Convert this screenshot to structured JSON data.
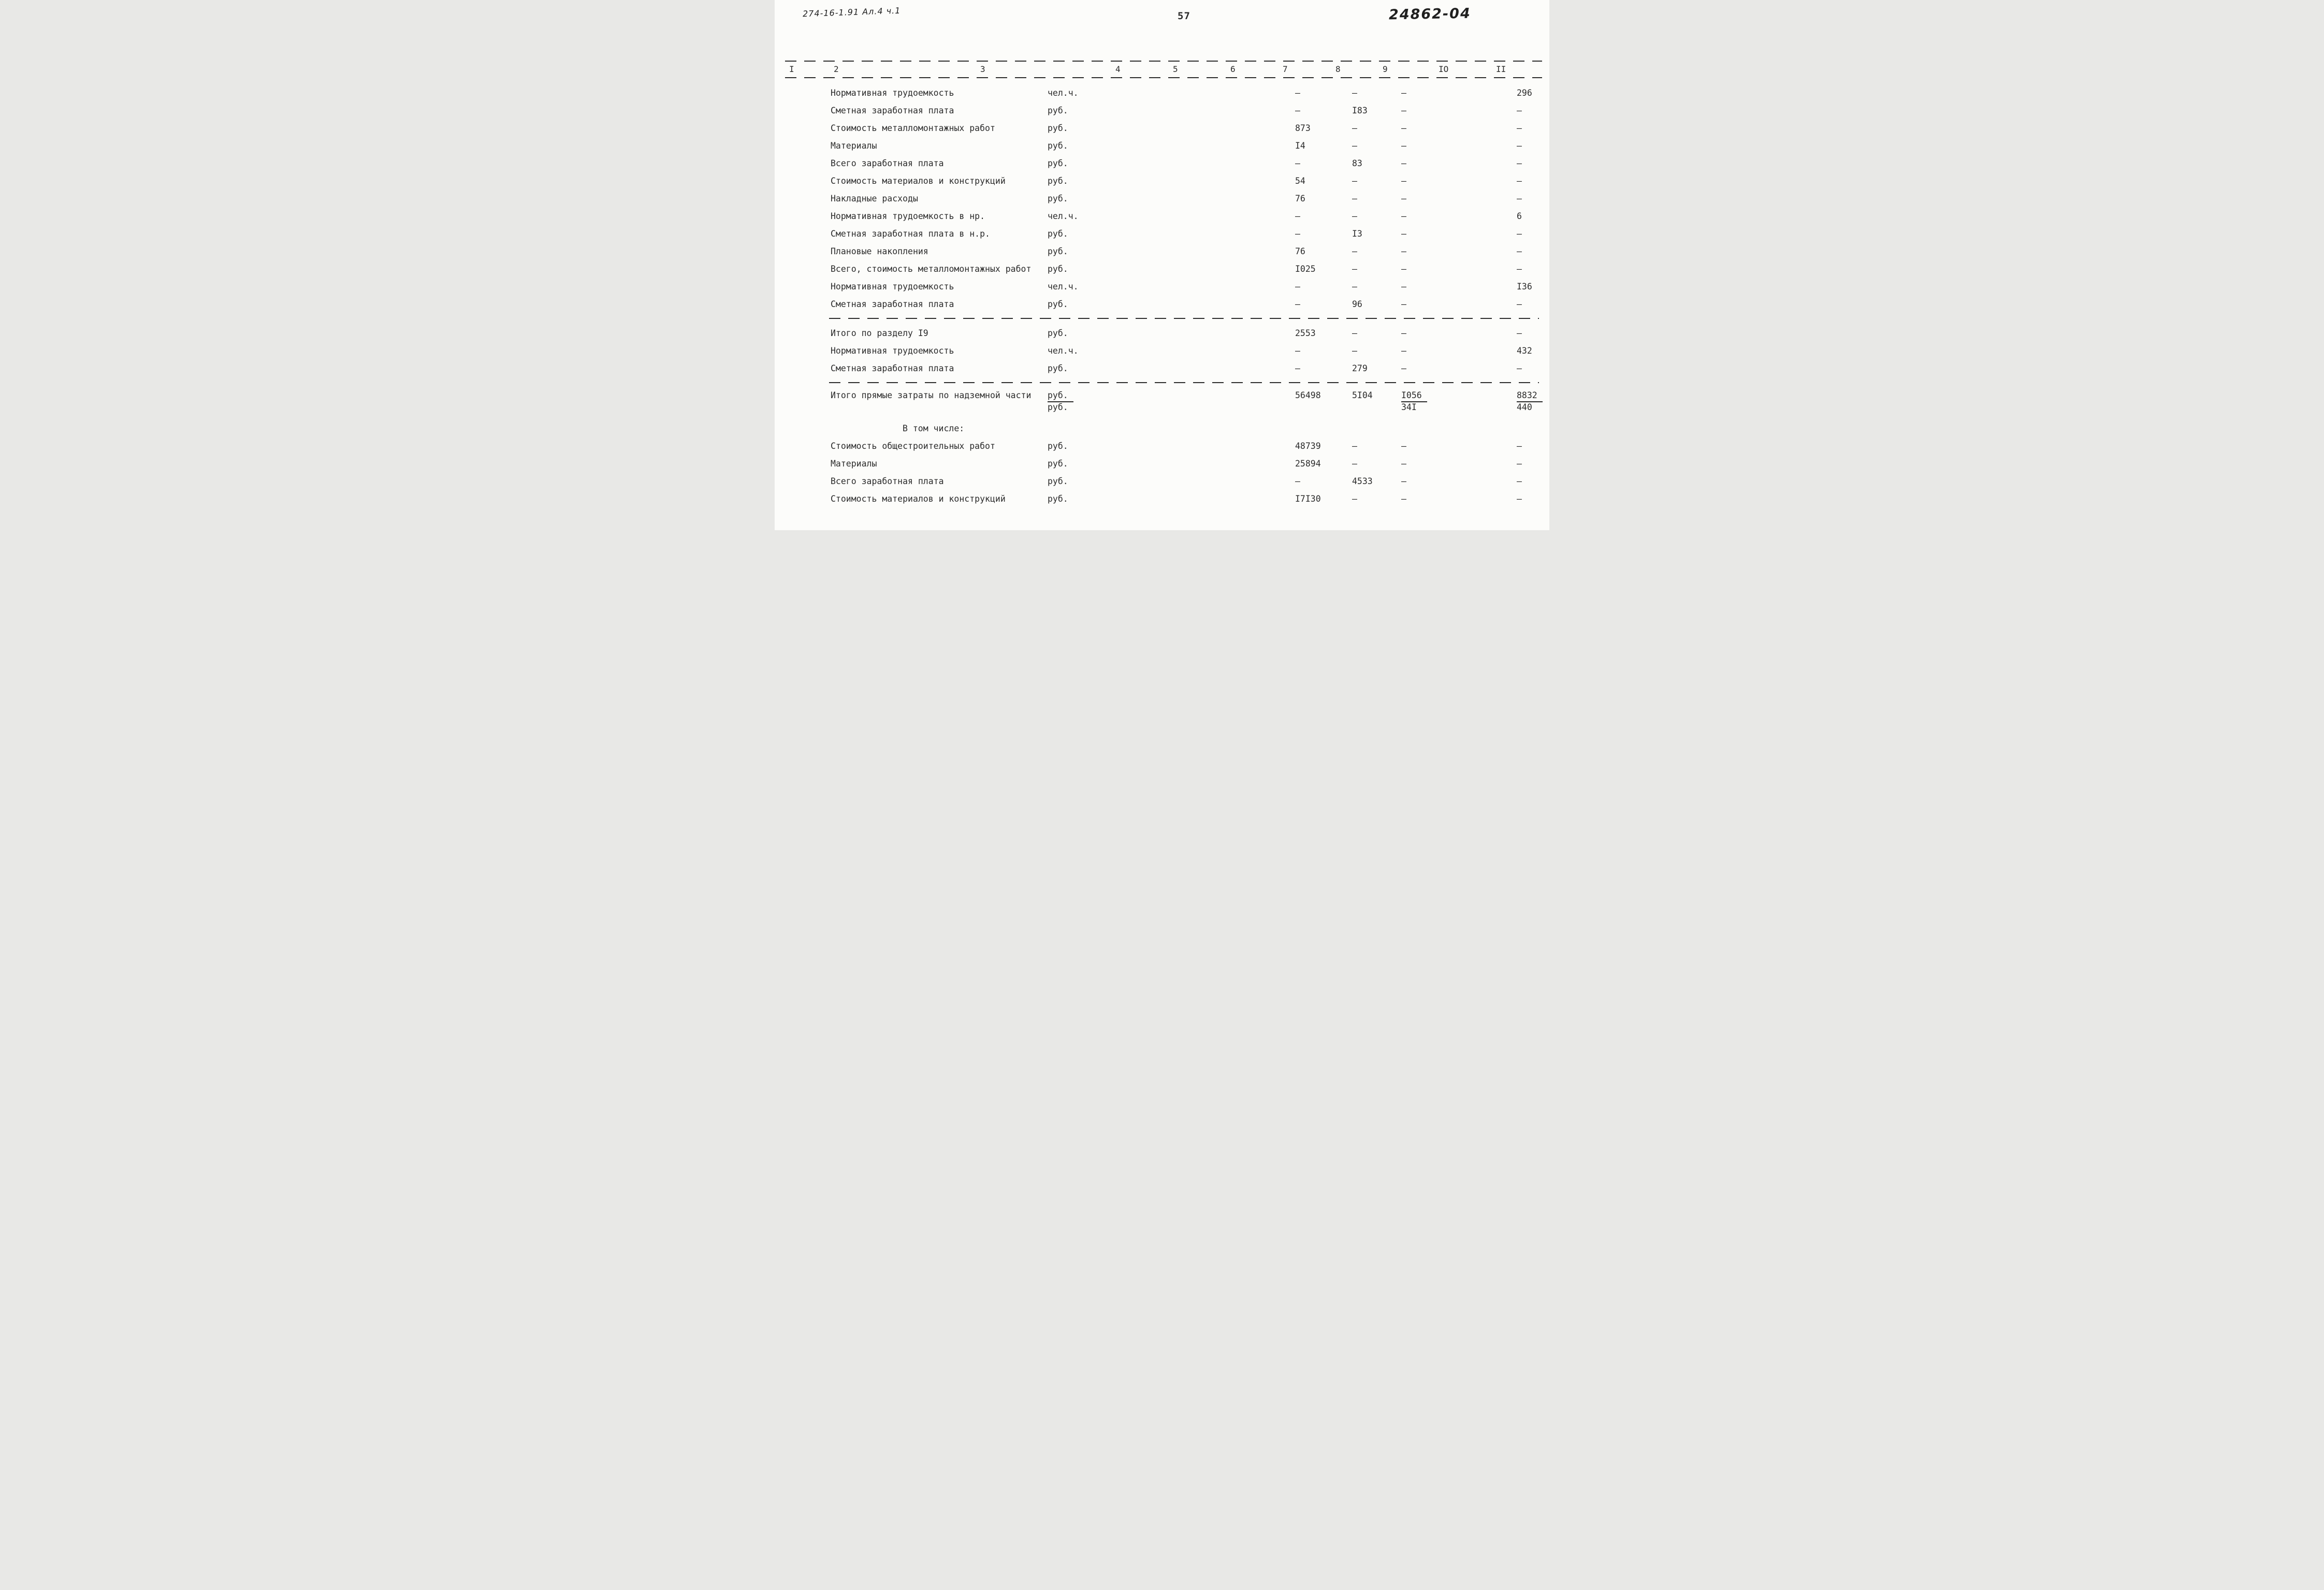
{
  "page": {
    "annotation_left": "274-16-1.91 Ал.4 ч.1",
    "page_number": "57",
    "annotation_right": "24862-04"
  },
  "table": {
    "header_columns": [
      "I",
      "2",
      "3",
      "4",
      "5",
      "6",
      "7",
      "8",
      "9",
      "IO",
      "II"
    ],
    "rows": [
      {
        "type": "row",
        "label": "Нормативная трудоемкость",
        "unit": "чел.ч.",
        "c7": "–",
        "c8": "–",
        "c9": "–",
        "c11": "296"
      },
      {
        "type": "row",
        "label": "Сметная заработная плата",
        "unit": "руб.",
        "c7": "–",
        "c8": "I83",
        "c9": "–",
        "c11": "–"
      },
      {
        "type": "row",
        "label": "Стоимость металломонтажных работ",
        "unit": "руб.",
        "c7": "873",
        "c8": "–",
        "c9": "–",
        "c11": "–"
      },
      {
        "type": "row",
        "label": "Материалы",
        "unit": "руб.",
        "c7": "I4",
        "c8": "–",
        "c9": "–",
        "c11": "–"
      },
      {
        "type": "row",
        "label": "Всего заработная плата",
        "unit": "руб.",
        "c7": "–",
        "c8": "83",
        "c9": "–",
        "c11": "–"
      },
      {
        "type": "row",
        "label": "Стоимость материалов и конструкций",
        "unit": "руб.",
        "c7": "54",
        "c8": "–",
        "c9": "–",
        "c11": "–"
      },
      {
        "type": "row",
        "label": "Накладные расходы",
        "unit": "руб.",
        "c7": "76",
        "c8": "–",
        "c9": "–",
        "c11": "–"
      },
      {
        "type": "row",
        "label": "Нормативная трудоемкость в нр.",
        "unit": "чел.ч.",
        "c7": "–",
        "c8": "–",
        "c9": "–",
        "c11": "6"
      },
      {
        "type": "row",
        "label": "Сметная заработная плата в н.р.",
        "unit": "руб.",
        "c7": "–",
        "c8": "I3",
        "c9": "–",
        "c11": "–"
      },
      {
        "type": "row",
        "label": "Плановые накопления",
        "unit": "руб.",
        "c7": "76",
        "c8": "–",
        "c9": "–",
        "c11": "–"
      },
      {
        "type": "row",
        "label": "Всего, стоимость металломонтажных работ",
        "unit": "руб.",
        "c7": "I025",
        "c8": "–",
        "c9": "–",
        "c11": "–"
      },
      {
        "type": "row",
        "label": "Нормативная трудоемкость",
        "unit": "чел.ч.",
        "c7": "–",
        "c8": "–",
        "c9": "–",
        "c11": "I36"
      },
      {
        "type": "row",
        "label": "Сметная заработная плата",
        "unit": "руб.",
        "c7": "–",
        "c8": "96",
        "c9": "–",
        "c11": "–"
      },
      {
        "type": "separator"
      },
      {
        "type": "row",
        "label": "Итого по разделу I9",
        "unit": "руб.",
        "c7": "2553",
        "c8": "–",
        "c9": "–",
        "c11": "–"
      },
      {
        "type": "row",
        "label": "Нормативная трудоемкость",
        "unit": "чел.ч.",
        "c7": "–",
        "c8": "–",
        "c9": "–",
        "c11": "432"
      },
      {
        "type": "row",
        "label": "Сметная заработная плата",
        "unit": "руб.",
        "c7": "–",
        "c8": "279",
        "c9": "–",
        "c11": "–"
      },
      {
        "type": "separator"
      },
      {
        "type": "total",
        "label": "Итого прямые затраты по надземной части",
        "unit_top": "руб.",
        "unit_bottom": "руб.",
        "c7": "56498",
        "c8": "5I04",
        "c9_top": "I056",
        "c9_bottom": "34I",
        "c11_top": "8832",
        "c11_bottom": "440"
      },
      {
        "type": "subheader",
        "label": "В том числе:"
      },
      {
        "type": "row",
        "label": "Стоимость общестроительных работ",
        "unit": "руб.",
        "c7": "48739",
        "c8": "–",
        "c9": "–",
        "c11": "–"
      },
      {
        "type": "row",
        "label": "Материалы",
        "unit": "руб.",
        "c7": "25894",
        "c8": "–",
        "c9": "–",
        "c11": "–"
      },
      {
        "type": "row",
        "label": "Всего заработная плата",
        "unit": "руб.",
        "c7": "–",
        "c8": "4533",
        "c9": "–",
        "c11": "–"
      },
      {
        "type": "row",
        "label": "Стоимость материалов и конструкций",
        "unit": "руб.",
        "c7": "I7I30",
        "c8": "–",
        "c9": "–",
        "c11": "–"
      }
    ]
  }
}
